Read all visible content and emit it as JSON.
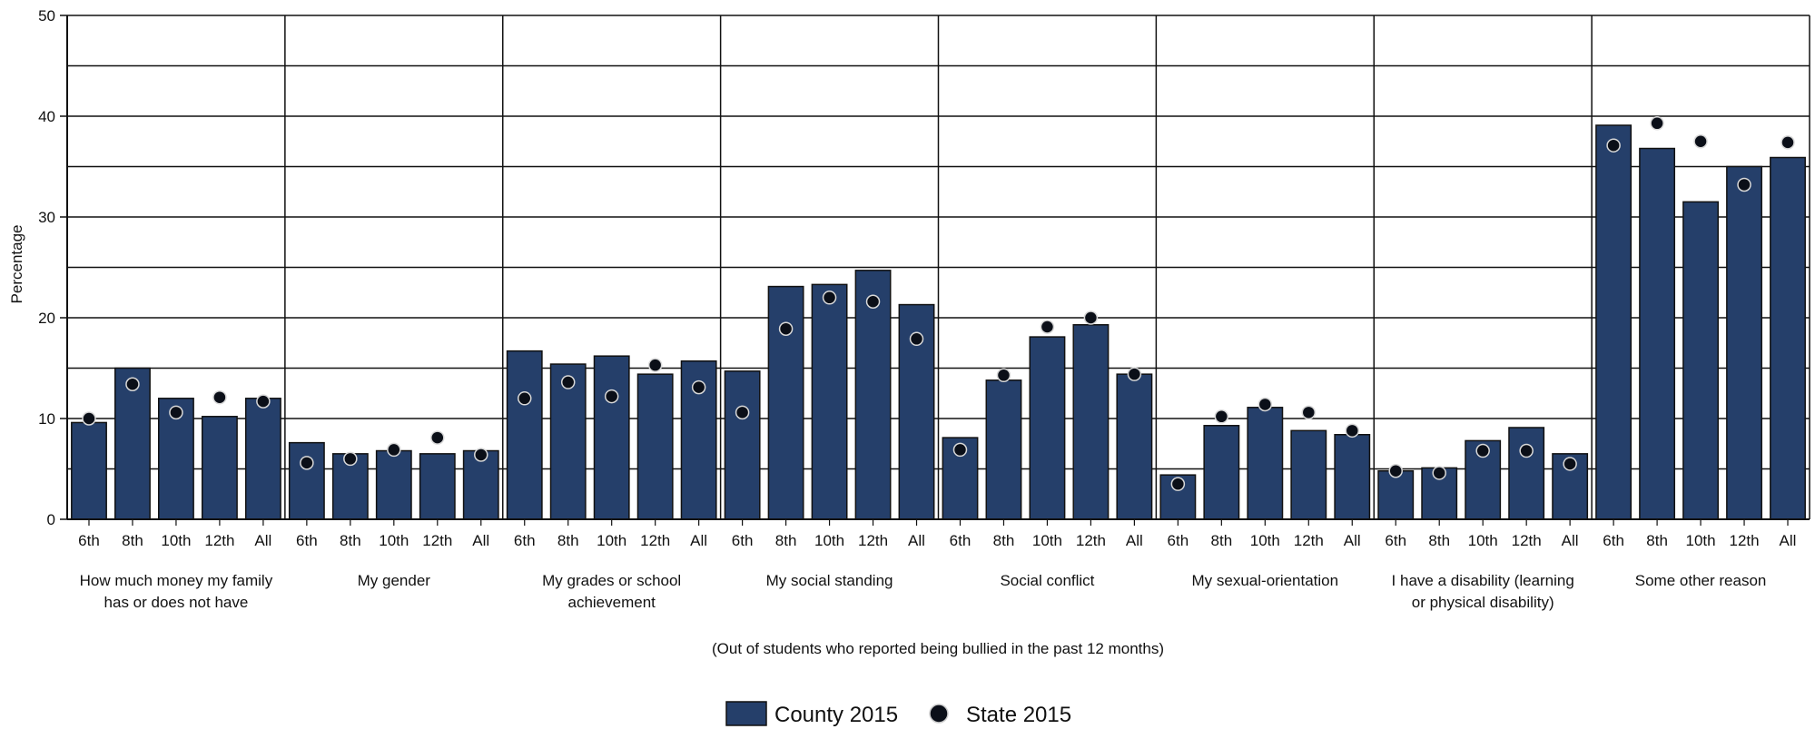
{
  "chart_data": {
    "type": "bar",
    "ylabel": "Percentage",
    "xnote": "(Out of students who reported being bullied in the past 12 months)",
    "ylim": [
      0,
      50
    ],
    "yticks": [
      0,
      10,
      20,
      30,
      40,
      50
    ],
    "grid": "horizontal every 5",
    "grades": [
      "6th",
      "8th",
      "10th",
      "12th",
      "All"
    ],
    "groups": [
      {
        "label": [
          "How much money my family",
          "has or does not have"
        ],
        "county": [
          9.6,
          15.0,
          12.0,
          10.2,
          12.0
        ],
        "state": [
          10.0,
          13.4,
          10.6,
          12.1,
          11.7
        ]
      },
      {
        "label": [
          "My gender"
        ],
        "county": [
          7.6,
          6.5,
          6.8,
          6.5,
          6.8
        ],
        "state": [
          5.6,
          6.0,
          6.9,
          8.1,
          6.4
        ]
      },
      {
        "label": [
          "My grades or school",
          "achievement"
        ],
        "county": [
          16.7,
          15.4,
          16.2,
          14.4,
          15.7
        ],
        "state": [
          12.0,
          13.6,
          12.2,
          15.3,
          13.1
        ]
      },
      {
        "label": [
          "My social standing"
        ],
        "county": [
          14.7,
          23.1,
          23.3,
          24.7,
          21.3
        ],
        "state": [
          10.6,
          18.9,
          22.0,
          21.6,
          17.9
        ]
      },
      {
        "label": [
          "Social conflict"
        ],
        "county": [
          8.1,
          13.8,
          18.1,
          19.3,
          14.4
        ],
        "state": [
          6.9,
          14.3,
          19.1,
          20.0,
          14.4
        ]
      },
      {
        "label": [
          "My sexual-orientation"
        ],
        "county": [
          4.4,
          9.3,
          11.1,
          8.8,
          8.4
        ],
        "state": [
          3.5,
          10.2,
          11.4,
          10.6,
          8.8
        ]
      },
      {
        "label": [
          "I have a disability (learning",
          "or physical disability)"
        ],
        "county": [
          4.8,
          5.1,
          7.8,
          9.1,
          6.5
        ],
        "state": [
          4.8,
          4.6,
          6.8,
          6.8,
          5.5
        ]
      },
      {
        "label": [
          "Some other reason"
        ],
        "county": [
          39.1,
          36.8,
          31.5,
          35.0,
          35.9
        ],
        "state": [
          37.1,
          39.3,
          37.5,
          33.2,
          37.4
        ]
      }
    ],
    "legend": [
      {
        "name": "County 2015",
        "marker": "bar"
      },
      {
        "name": "State 2015",
        "marker": "dot"
      }
    ],
    "colors": {
      "bar": "#253f6a",
      "dot": "#0b0f18"
    }
  }
}
